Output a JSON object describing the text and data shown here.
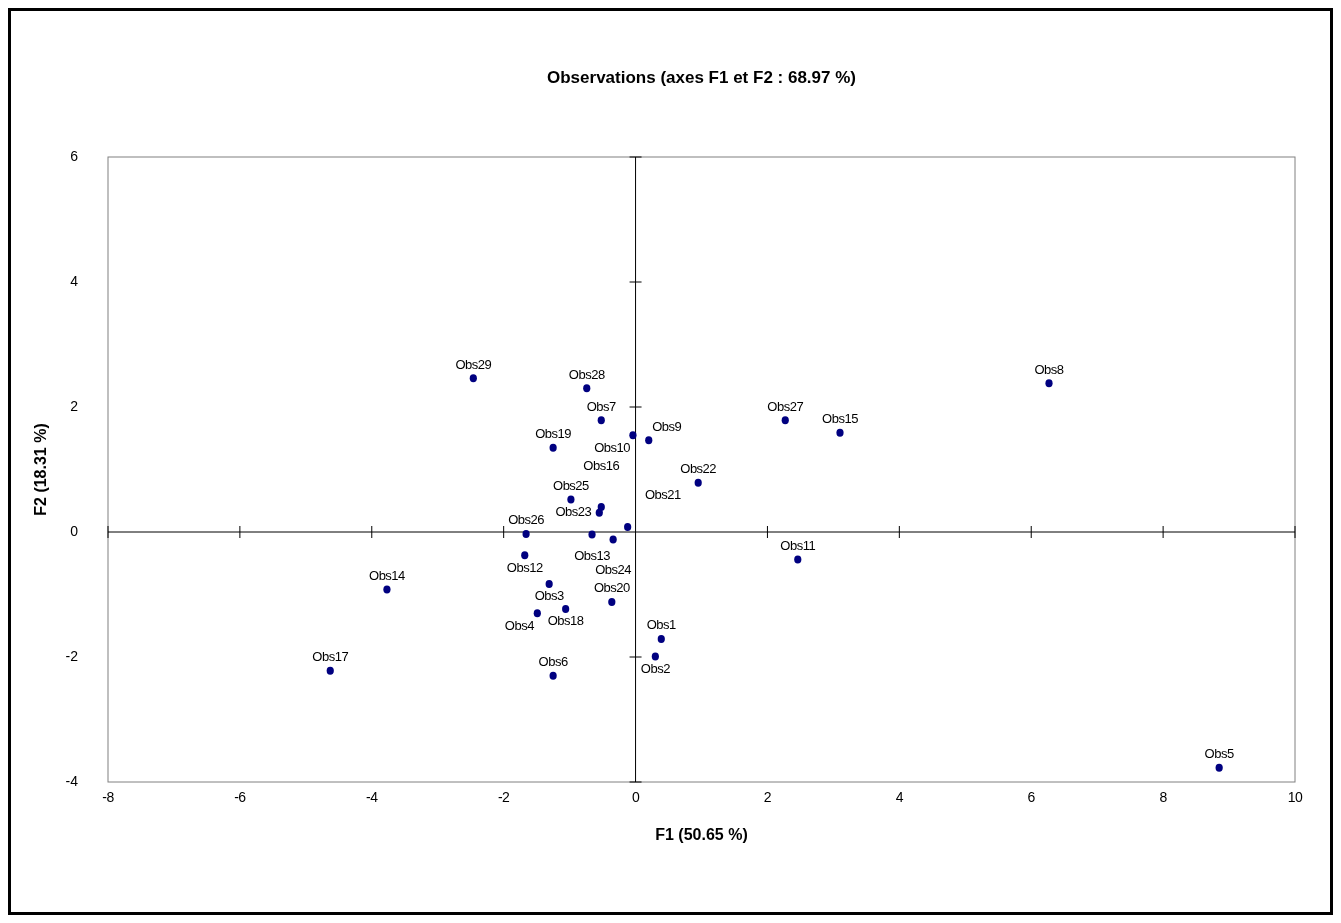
{
  "chart_data": {
    "type": "scatter",
    "title": "Observations (axes F1 et F2 : 68.97 %)",
    "xlabel": "F1 (50.65 %)",
    "ylabel": "F2 (18.31 %)",
    "xlim": [
      -8,
      10
    ],
    "xticks": [
      -8,
      -6,
      -4,
      -2,
      0,
      2,
      4,
      6,
      8,
      10
    ],
    "ylim": [
      -4,
      6
    ],
    "yticks": [
      -4,
      -2,
      0,
      2,
      4,
      6
    ],
    "marker": "circle",
    "series": [
      {
        "color": "#000080",
        "x": [
          -2.46,
          -0.74,
          -0.52,
          -0.04,
          0.2,
          -1.25,
          0.95,
          -0.98,
          -0.52,
          -0.55,
          -0.12,
          -1.66,
          -0.66,
          -0.34,
          -1.68,
          -3.77,
          -1.31,
          -0.36,
          -1.06,
          -1.49,
          0.39,
          0.3,
          -4.63,
          -1.25,
          2.27,
          3.1,
          6.27,
          2.46,
          8.85
        ],
        "values": [
          2.46,
          2.3,
          1.79,
          1.55,
          1.47,
          1.35,
          0.79,
          0.52,
          0.4,
          0.31,
          0.08,
          -0.03,
          -0.04,
          -0.12,
          -0.37,
          -0.92,
          -0.83,
          -1.12,
          -1.23,
          -1.3,
          -1.71,
          -1.99,
          -2.22,
          -2.3,
          1.79,
          1.59,
          2.38,
          -0.44,
          -3.77
        ]
      }
    ],
    "annotations": [
      {
        "text": "Obs29",
        "x": -2.46,
        "y": 2.46
      },
      {
        "text": "Obs28",
        "x": -0.74,
        "y": 2.3
      },
      {
        "text": "Obs7",
        "x": -0.52,
        "y": 1.79
      },
      {
        "text": "Obs10",
        "x": -0.04,
        "y": 1.55
      },
      {
        "text": "Obs9",
        "x": 0.2,
        "y": 1.47
      },
      {
        "text": "Obs19",
        "x": -1.25,
        "y": 1.35
      },
      {
        "text": "Obs22",
        "x": 0.95,
        "y": 0.79
      },
      {
        "text": "Obs25",
        "x": -0.98,
        "y": 0.52
      },
      {
        "text": "Obs16",
        "x": -0.52,
        "y": 0.4
      },
      {
        "text": "Obs23",
        "x": -0.55,
        "y": 0.31
      },
      {
        "text": "Obs21",
        "x": -0.12,
        "y": 0.08
      },
      {
        "text": "Obs26",
        "x": -1.66,
        "y": -0.03
      },
      {
        "text": "Obs13",
        "x": -0.66,
        "y": -0.04
      },
      {
        "text": "Obs24",
        "x": -0.34,
        "y": -0.12
      },
      {
        "text": "Obs12",
        "x": -1.68,
        "y": -0.37
      },
      {
        "text": "Obs14",
        "x": -3.77,
        "y": -0.92
      },
      {
        "text": "Obs3",
        "x": -1.31,
        "y": -0.83
      },
      {
        "text": "Obs20",
        "x": -0.36,
        "y": -1.12
      },
      {
        "text": "Obs18",
        "x": -1.06,
        "y": -1.23
      },
      {
        "text": "Obs4",
        "x": -1.49,
        "y": -1.3
      },
      {
        "text": "Obs1",
        "x": 0.39,
        "y": -1.71
      },
      {
        "text": "Obs2",
        "x": 0.3,
        "y": -1.99
      },
      {
        "text": "Obs17",
        "x": -4.63,
        "y": -2.22
      },
      {
        "text": "Obs6",
        "x": -1.25,
        "y": -2.3
      },
      {
        "text": "Obs27",
        "x": 2.27,
        "y": 1.79
      },
      {
        "text": "Obs15",
        "x": 3.1,
        "y": 1.59
      },
      {
        "text": "Obs8",
        "x": 6.27,
        "y": 2.38
      },
      {
        "text": "Obs11",
        "x": 2.46,
        "y": -0.44
      },
      {
        "text": "Obs5",
        "x": 8.85,
        "y": -3.77
      }
    ]
  }
}
